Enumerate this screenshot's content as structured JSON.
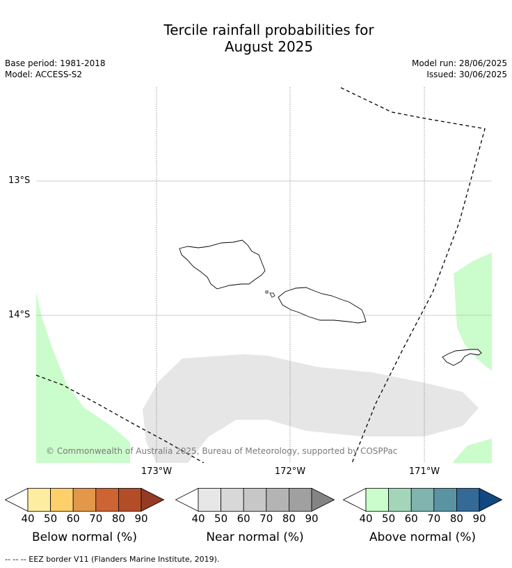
{
  "title": {
    "line1": "Tercile rainfall probabilities for",
    "line2": "August 2025"
  },
  "meta": {
    "base_period": "Base period: 1981-2018",
    "model": "Model: ACCESS-S2",
    "model_run": "Model run: 28/06/2025",
    "issued": "Issued: 30/06/2025"
  },
  "map": {
    "lat_labels": [
      "13°S",
      "14°S"
    ],
    "lon_labels": [
      "173°W",
      "172°W",
      "171°W"
    ],
    "copyright": "© Commonwealth of Australia 2025, Bureau of Meteorology, supported by COSPPac"
  },
  "legend": {
    "ticks": [
      "40",
      "50",
      "60",
      "70",
      "80",
      "90"
    ],
    "below": {
      "title": "Below normal (%)",
      "colors": [
        "#fdeda1",
        "#fecf6a",
        "#e3974a",
        "#cd6433",
        "#b34d27",
        "#953a23"
      ]
    },
    "near": {
      "title": "Near normal (%)",
      "colors": [
        "#e7e7e7",
        "#d8d8d8",
        "#c7c7c7",
        "#b4b4b4",
        "#a0a0a0",
        "#848484"
      ]
    },
    "above": {
      "title": "Above normal (%)",
      "colors": [
        "#cbfccb",
        "#a4d5bb",
        "#7fb4af",
        "#5a94a2",
        "#336a98",
        "#13477f"
      ]
    }
  },
  "footer": "--  --  -- EEZ border V11 (Flanders Marine Institute, 2019)."
}
